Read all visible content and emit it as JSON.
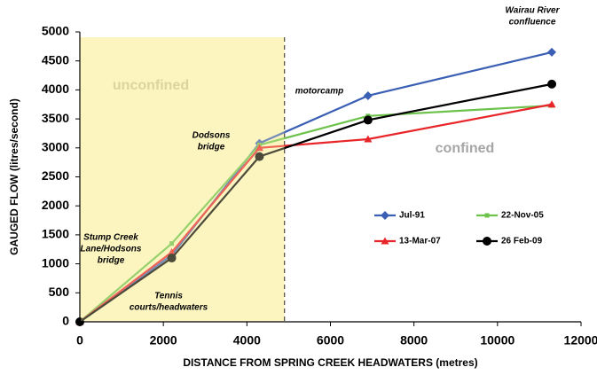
{
  "chart_data": {
    "type": "line",
    "xlabel": "DISTANCE FROM SPRING CREEK HEADWATERS (metres)",
    "ylabel": "GAUGED FLOW (litres/second)",
    "xlim": [
      0,
      12000
    ],
    "xticks": [
      0,
      2000,
      4000,
      6000,
      8000,
      10000,
      12000
    ],
    "ylim": [
      0,
      5000
    ],
    "yticks": [
      0,
      500,
      1000,
      1500,
      2000,
      2500,
      3000,
      3500,
      4000,
      4500,
      5000
    ],
    "x": [
      0,
      2200,
      4300,
      6900,
      11300
    ],
    "series": [
      {
        "name": "Jul-91",
        "color": "#3a5fb4",
        "marker": "diamond",
        "values": [
          0,
          1150,
          3080,
          3900,
          4650
        ]
      },
      {
        "name": "22-Nov-05",
        "color": "#6cc24a",
        "marker": "square",
        "values": [
          0,
          1350,
          3050,
          3550,
          3730
        ]
      },
      {
        "name": "13-Mar-07",
        "color": "#e8262a",
        "marker": "triangle",
        "values": [
          0,
          1200,
          3000,
          3150,
          3750
        ]
      },
      {
        "name": "26 Feb-09",
        "color": "#000000",
        "marker": "circle",
        "values": [
          0,
          1100,
          2850,
          3480,
          4100
        ]
      }
    ],
    "regions": [
      {
        "label": "unconfined",
        "xlim": [
          0,
          4900
        ],
        "color": "#fdf5c0"
      }
    ],
    "zone_labels": [
      "confined"
    ],
    "annotations": [
      {
        "lines": [
          "Wairau River",
          "confluence"
        ]
      },
      {
        "lines": [
          "motorcamp"
        ]
      },
      {
        "lines": [
          "Dodsons",
          "bridge"
        ]
      },
      {
        "lines": [
          "Stump Creek",
          "Lane/Hodsons",
          "bridge"
        ]
      },
      {
        "lines": [
          "Tennis",
          "courts/headwaters"
        ]
      }
    ]
  }
}
